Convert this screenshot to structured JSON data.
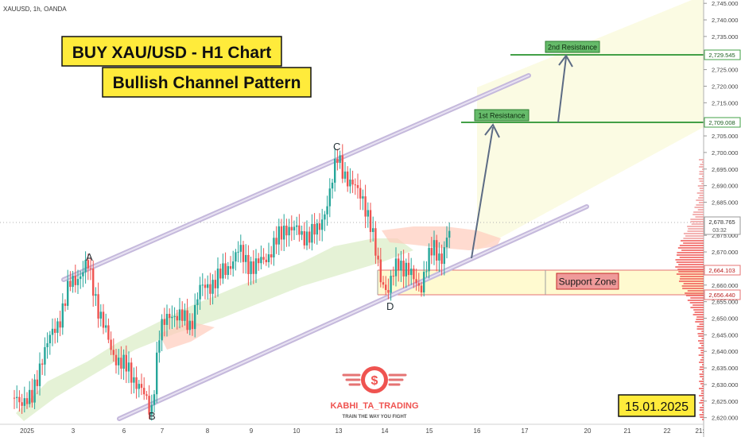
{
  "header": {
    "symbol": "XAUUSD, 1h, OANDA"
  },
  "titles": {
    "line1": "BUY XAU/USD - H1 Chart",
    "line2": "Bullish Channel Pattern"
  },
  "date_badge": "15.01.2025",
  "logo": {
    "name": "KABHI_TA_TRADING",
    "tagline": "TRAIN THE WAY YOU FIGHT",
    "symbol": "$"
  },
  "colors": {
    "bull": "#26a69a",
    "bear": "#ef5350",
    "channel": "#c5b9dc",
    "resistance": "#43a047",
    "support_fill": "#fff9c4",
    "support_label": "#ef9a9a",
    "title_bg": "#ffeb3b",
    "cloud_bull": "#dcedc8",
    "cloud_bear": "#ffccbc"
  },
  "chart_data": {
    "type": "candlestick",
    "price_axis": {
      "ylim": [
        2618,
        2746
      ],
      "ticks": [
        "2,620.000",
        "2,625.000",
        "2,630.000",
        "2,635.000",
        "2,640.000",
        "2,645.000",
        "2,650.000",
        "2,655.000",
        "2,660.000",
        "2,665.000",
        "2,670.000",
        "2,675.000",
        "2,680.000",
        "2,685.000",
        "2,690.000",
        "2,695.000",
        "2,700.000",
        "2,705.000",
        "2,710.000",
        "2,715.000",
        "2,720.000",
        "2,725.000",
        "2,730.000",
        "2,735.000",
        "2,740.000",
        "2,745.000"
      ]
    },
    "time_axis": {
      "ticks": [
        "2025",
        "3",
        "6",
        "7",
        "8",
        "9",
        "10",
        "13",
        "14",
        "15",
        "16",
        "17",
        "20",
        "21",
        "22",
        "21:"
      ]
    },
    "current_price": {
      "value": 2678.765,
      "label": "2,678.765",
      "countdown": "03:32"
    },
    "levels": [
      {
        "name": "2nd Resistance",
        "value": 2729.545,
        "label": "2,729.545"
      },
      {
        "name": "1st Resistance",
        "value": 2709.008,
        "label": "2,709.008"
      },
      {
        "name": "support-top",
        "value": 2664.103,
        "label": "2,664.103"
      },
      {
        "name": "support-bottom",
        "value": 2656.44,
        "label": "2,656.440"
      }
    ],
    "support_zone_label": "Support Zone",
    "points": [
      {
        "name": "A",
        "value": 2666
      },
      {
        "name": "B",
        "value": 2620
      },
      {
        "name": "C",
        "value": 2699
      },
      {
        "name": "D",
        "value": 2656
      }
    ]
  }
}
